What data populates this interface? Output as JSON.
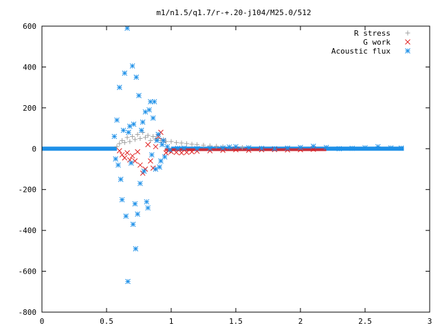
{
  "chart_data": {
    "type": "scatter",
    "title": "m1/n1.5/q1.7/r-+.20-j104/M25.0/512",
    "xlabel": "",
    "ylabel": "",
    "xlim": [
      0,
      3
    ],
    "ylim": [
      -800,
      600
    ],
    "xticks": [
      0,
      0.5,
      1,
      1.5,
      2,
      2.5,
      3
    ],
    "xtick_labels": [
      "0",
      "0.5",
      "1",
      "1.5",
      "2",
      "2.5",
      "3"
    ],
    "yticks": [
      -800,
      -600,
      -400,
      -200,
      0,
      200,
      400,
      600
    ],
    "ytick_labels": [
      "-800",
      "-600",
      "-400",
      "-200",
      "0",
      "200",
      "400",
      "600"
    ],
    "grid": false,
    "legend_position": "top-right",
    "series": [
      {
        "name": "R stress",
        "marker": "plus",
        "color": "#a0a0a0",
        "points": [
          [
            0.58,
            10
          ],
          [
            0.6,
            25
          ],
          [
            0.62,
            40
          ],
          [
            0.64,
            30
          ],
          [
            0.66,
            55
          ],
          [
            0.68,
            35
          ],
          [
            0.7,
            60
          ],
          [
            0.72,
            45
          ],
          [
            0.74,
            70
          ],
          [
            0.76,
            50
          ],
          [
            0.78,
            80
          ],
          [
            0.8,
            55
          ],
          [
            0.82,
            65
          ],
          [
            0.84,
            40
          ],
          [
            0.86,
            60
          ],
          [
            0.88,
            45
          ],
          [
            0.9,
            50
          ],
          [
            0.92,
            40
          ],
          [
            0.94,
            45
          ],
          [
            0.96,
            35
          ],
          [
            1.0,
            35
          ],
          [
            1.04,
            30
          ],
          [
            1.08,
            28
          ],
          [
            1.12,
            25
          ],
          [
            1.16,
            22
          ],
          [
            1.2,
            20
          ],
          [
            1.25,
            17
          ],
          [
            1.3,
            14
          ],
          [
            1.35,
            12
          ],
          [
            1.4,
            10
          ],
          [
            1.45,
            8
          ],
          [
            1.5,
            7
          ],
          [
            1.55,
            6
          ]
        ]
      },
      {
        "name": "G work",
        "marker": "cross",
        "color": "#e02020",
        "points": [
          [
            0.6,
            -10
          ],
          [
            0.62,
            -30
          ],
          [
            0.64,
            -45
          ],
          [
            0.66,
            -20
          ],
          [
            0.68,
            -55
          ],
          [
            0.7,
            -35
          ],
          [
            0.72,
            -60
          ],
          [
            0.74,
            -15
          ],
          [
            0.76,
            -80
          ],
          [
            0.78,
            -120
          ],
          [
            0.8,
            -100
          ],
          [
            0.82,
            20
          ],
          [
            0.84,
            -60
          ],
          [
            0.86,
            -95
          ],
          [
            0.88,
            10
          ],
          [
            0.9,
            60
          ],
          [
            0.92,
            80
          ],
          [
            0.94,
            40
          ],
          [
            0.96,
            -20
          ],
          [
            0.98,
            -10
          ],
          [
            1.0,
            -15
          ],
          [
            1.04,
            -18
          ],
          [
            1.08,
            -20
          ],
          [
            1.12,
            -18
          ],
          [
            1.16,
            -15
          ],
          [
            1.2,
            -12
          ],
          [
            1.3,
            -10
          ],
          [
            1.4,
            -8
          ],
          [
            1.5,
            -5
          ],
          [
            1.6,
            -8
          ],
          [
            1.7,
            -5
          ],
          [
            1.8,
            -4
          ],
          [
            1.9,
            -6
          ],
          [
            2.0,
            -5
          ],
          [
            2.1,
            -3
          ]
        ]
      },
      {
        "name": "Acoustic flux",
        "marker": "star",
        "color": "#1e90e8",
        "points": [
          [
            0.56,
            60
          ],
          [
            0.57,
            -50
          ],
          [
            0.58,
            140
          ],
          [
            0.59,
            -80
          ],
          [
            0.6,
            300
          ],
          [
            0.61,
            -150
          ],
          [
            0.62,
            -250
          ],
          [
            0.63,
            90
          ],
          [
            0.64,
            370
          ],
          [
            0.65,
            -330
          ],
          [
            0.66,
            590
          ],
          [
            0.665,
            -650
          ],
          [
            0.67,
            80
          ],
          [
            0.68,
            110
          ],
          [
            0.69,
            -70
          ],
          [
            0.7,
            405
          ],
          [
            0.705,
            -370
          ],
          [
            0.71,
            120
          ],
          [
            0.72,
            -270
          ],
          [
            0.725,
            -490
          ],
          [
            0.73,
            350
          ],
          [
            0.74,
            -320
          ],
          [
            0.75,
            260
          ],
          [
            0.76,
            -170
          ],
          [
            0.77,
            90
          ],
          [
            0.78,
            130
          ],
          [
            0.79,
            -110
          ],
          [
            0.8,
            180
          ],
          [
            0.81,
            -260
          ],
          [
            0.82,
            -290
          ],
          [
            0.83,
            190
          ],
          [
            0.84,
            230
          ],
          [
            0.85,
            -30
          ],
          [
            0.86,
            150
          ],
          [
            0.87,
            230
          ],
          [
            0.88,
            -100
          ],
          [
            0.89,
            40
          ],
          [
            0.9,
            70
          ],
          [
            0.91,
            -90
          ],
          [
            0.92,
            -60
          ],
          [
            0.93,
            20
          ],
          [
            0.94,
            40
          ],
          [
            0.95,
            -40
          ],
          [
            0.97,
            10
          ],
          [
            0.99,
            -5
          ],
          [
            1.05,
            2
          ],
          [
            1.1,
            3
          ],
          [
            1.2,
            1
          ],
          [
            1.3,
            2
          ],
          [
            1.4,
            4
          ],
          [
            1.45,
            8
          ],
          [
            1.5,
            10
          ],
          [
            1.6,
            5
          ],
          [
            1.7,
            2
          ],
          [
            1.8,
            0
          ],
          [
            1.9,
            3
          ],
          [
            2.0,
            6
          ],
          [
            2.1,
            12
          ],
          [
            2.2,
            6
          ],
          [
            2.3,
            0
          ],
          [
            2.4,
            2
          ],
          [
            2.5,
            5
          ],
          [
            2.6,
            10
          ],
          [
            2.7,
            4
          ],
          [
            2.78,
            3
          ]
        ]
      }
    ]
  }
}
